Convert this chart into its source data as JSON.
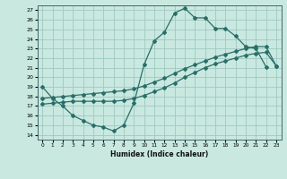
{
  "title": "",
  "xlabel": "Humidex (Indice chaleur)",
  "ylabel": "",
  "bg_color": "#c8e8e0",
  "grid_color": "#a0c8c0",
  "line_color": "#2a6e6a",
  "xlim": [
    -0.5,
    23.5
  ],
  "ylim": [
    13.5,
    27.5
  ],
  "xticks": [
    0,
    1,
    2,
    3,
    4,
    5,
    6,
    7,
    8,
    9,
    10,
    11,
    12,
    13,
    14,
    15,
    16,
    17,
    18,
    19,
    20,
    21,
    22,
    23
  ],
  "yticks": [
    14,
    15,
    16,
    17,
    18,
    19,
    20,
    21,
    22,
    23,
    24,
    25,
    26,
    27
  ],
  "curve1_x": [
    0,
    1,
    2,
    3,
    4,
    5,
    6,
    7,
    8,
    9,
    10,
    11,
    12,
    13,
    14,
    15,
    16,
    17,
    18,
    19,
    20,
    21,
    22
  ],
  "curve1_y": [
    19.0,
    17.8,
    17.0,
    16.0,
    15.5,
    15.0,
    14.8,
    14.4,
    15.0,
    17.3,
    21.3,
    23.8,
    24.7,
    26.7,
    27.2,
    26.2,
    26.2,
    25.1,
    25.1,
    24.3,
    23.2,
    23.0,
    21.1
  ],
  "curve2_x": [
    0,
    1,
    2,
    3,
    4,
    5,
    6,
    7,
    8,
    9,
    10,
    11,
    12,
    13,
    14,
    15,
    16,
    17,
    18,
    19,
    20,
    21,
    22,
    23
  ],
  "curve2_y": [
    17.8,
    17.9,
    18.0,
    18.1,
    18.2,
    18.3,
    18.4,
    18.5,
    18.6,
    18.8,
    19.1,
    19.5,
    19.9,
    20.4,
    20.9,
    21.3,
    21.7,
    22.1,
    22.4,
    22.7,
    23.0,
    23.2,
    23.2,
    21.2
  ],
  "curve3_x": [
    0,
    1,
    2,
    3,
    4,
    5,
    6,
    7,
    8,
    9,
    10,
    11,
    12,
    13,
    14,
    15,
    16,
    17,
    18,
    19,
    20,
    21,
    22,
    23
  ],
  "curve3_y": [
    17.2,
    17.3,
    17.4,
    17.5,
    17.5,
    17.5,
    17.5,
    17.5,
    17.6,
    17.8,
    18.1,
    18.5,
    18.9,
    19.4,
    20.0,
    20.5,
    21.0,
    21.4,
    21.7,
    22.0,
    22.3,
    22.5,
    22.6,
    21.2
  ]
}
